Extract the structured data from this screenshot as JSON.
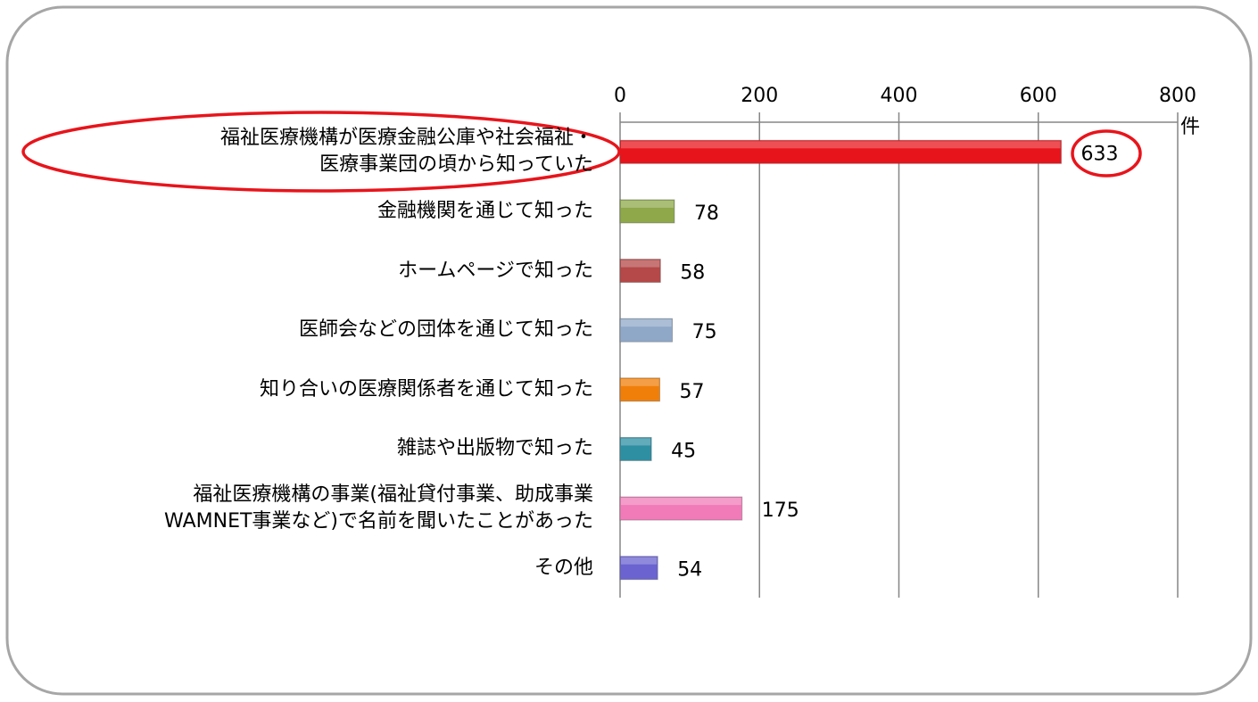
{
  "chart_data": {
    "type": "bar",
    "orientation": "horizontal",
    "categories": [
      "福祉医療機構が医療金融公庫や社会福祉・\n医療事業団の頃から知っていた",
      "金融機関を通じて知った",
      "ホームページで知った",
      "医師会などの団体を通じて知った",
      "知り合いの医療関係者を通じて知った",
      "雑誌や出版物で知った",
      "福祉医療機構の事業(福祉貸付事業、助成事業\nWAMNET事業など)で名前を聞いたことがあった",
      "その他"
    ],
    "values": [
      633,
      78,
      58,
      75,
      57,
      45,
      175,
      54
    ],
    "colors": [
      "#e8141b",
      "#8ea84a",
      "#b54848",
      "#8fa8c8",
      "#f07f0a",
      "#2e8fa3",
      "#f07bb8",
      "#6a63d0"
    ],
    "xlabel": "件",
    "xlim": [
      0,
      800
    ],
    "xticks": [
      0,
      200,
      400,
      600,
      800
    ],
    "grid": true
  }
}
